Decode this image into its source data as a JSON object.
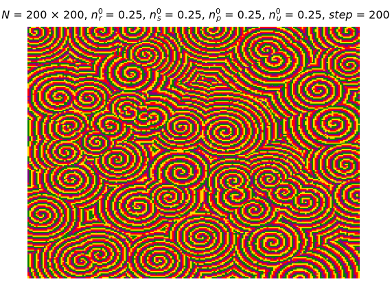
{
  "chart_data": {
    "type": "heatmap",
    "title": "N = 200 × 200, n_r^0 = 0.25, n_s^0 = 0.25, n_p^0 = 0.25, n_u^0 = 0.25, step = 200",
    "grid_size": [
      200,
      200
    ],
    "initial_densities": {
      "n_r": 0.25,
      "n_s": 0.25,
      "n_p": 0.25,
      "n_u": 0.25
    },
    "step": 200,
    "axes_visible": false,
    "species_colors": {
      "r": "#ff0000",
      "s": "#ffd700",
      "p": "#008000",
      "u": "#800080"
    }
  }
}
